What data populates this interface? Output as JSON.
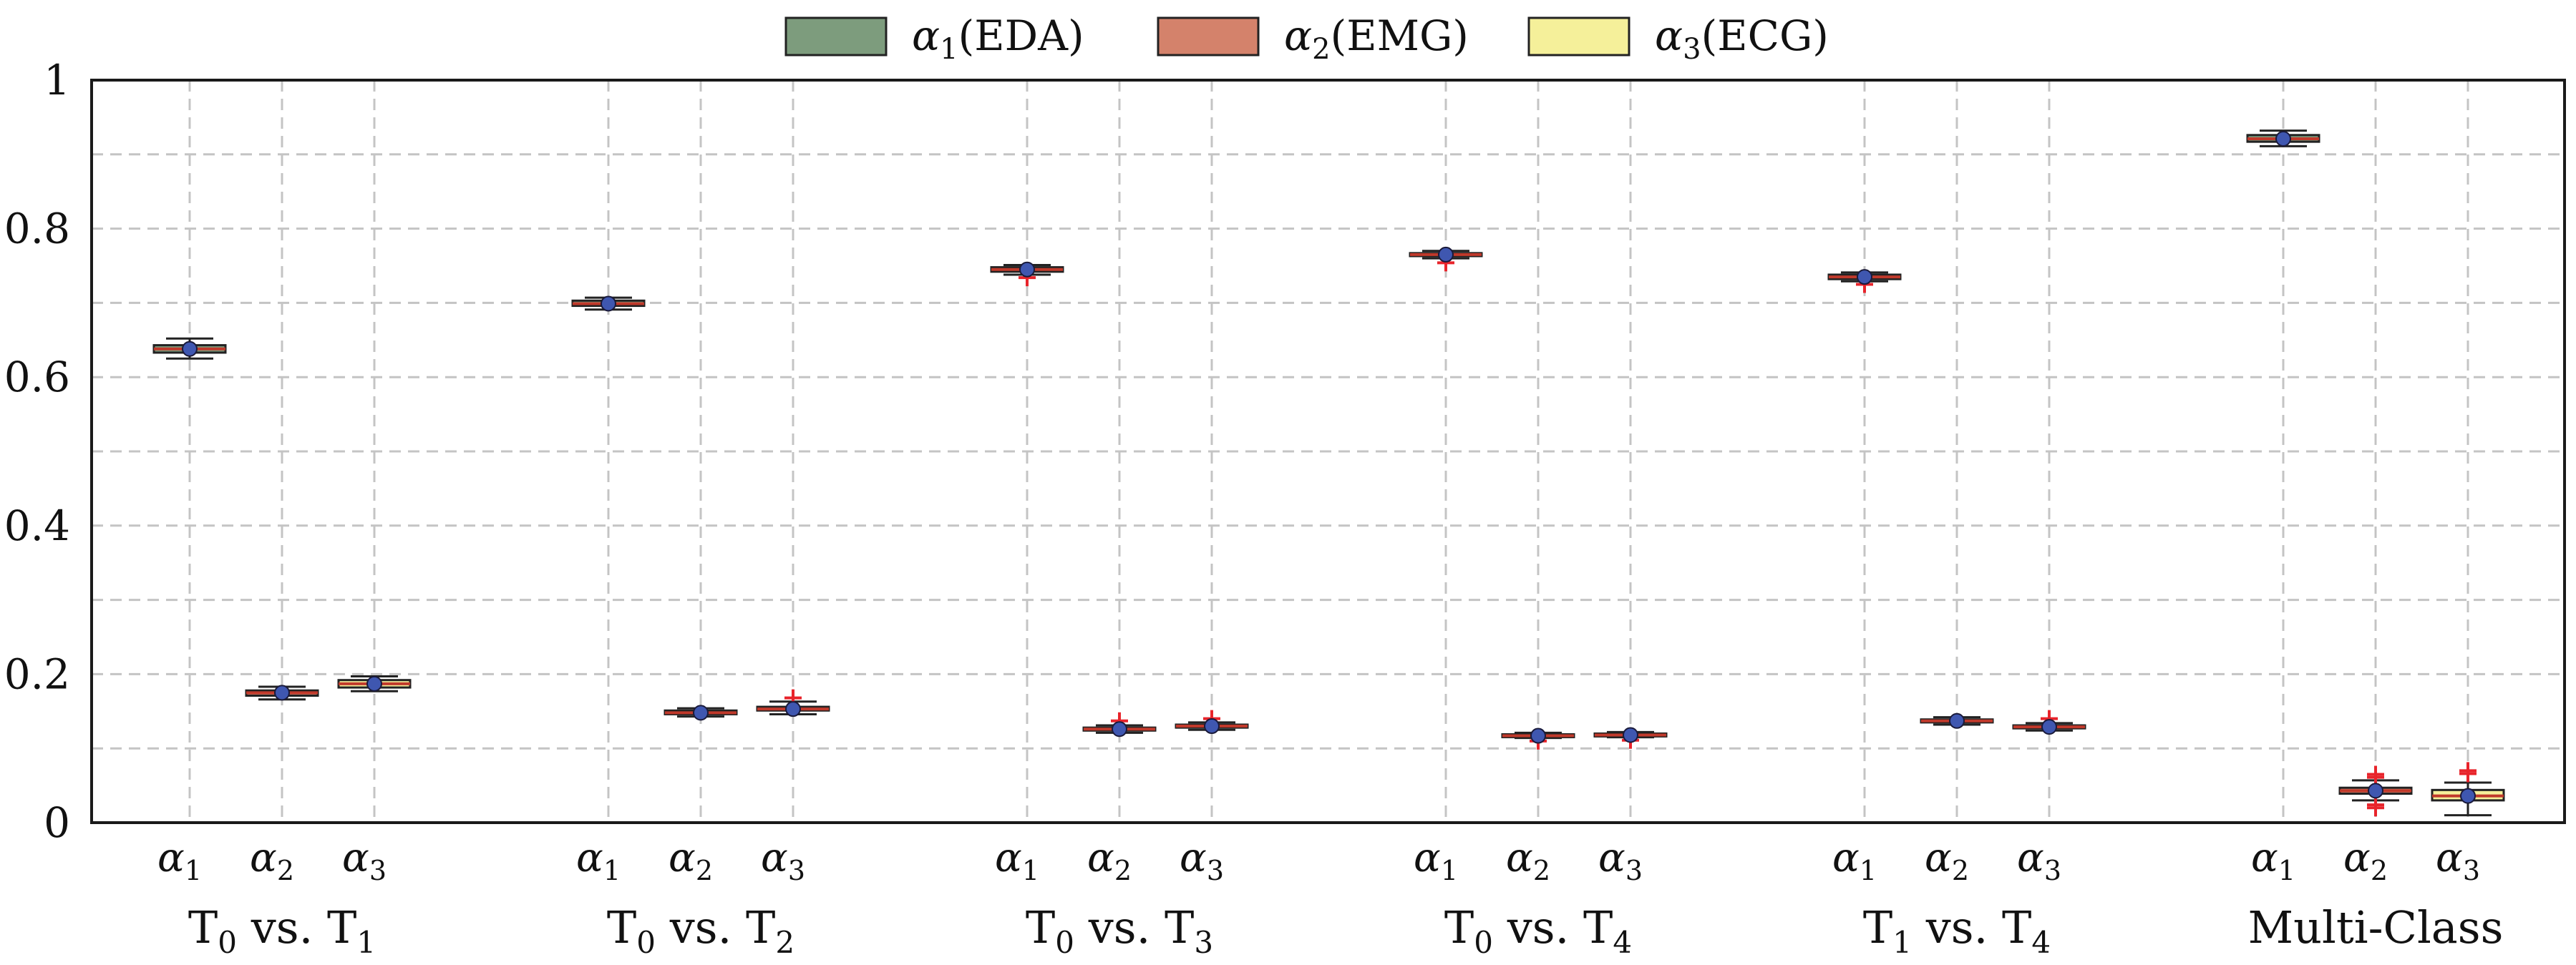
{
  "chart_data": {
    "type": "box",
    "title": "",
    "xlabel": "",
    "ylabel": "",
    "ylim": [
      0,
      1
    ],
    "yticks": [
      {
        "value": 0,
        "label": "0"
      },
      {
        "value": 0.2,
        "label": "0.2"
      },
      {
        "value": 0.4,
        "label": "0.4"
      },
      {
        "value": 0.6,
        "label": "0.6"
      },
      {
        "value": 0.8,
        "label": "0.8"
      },
      {
        "value": 1,
        "label": "1"
      }
    ],
    "grid": true,
    "legend_position": "top-center",
    "legend": [
      {
        "key": "a1",
        "symbol": "α",
        "sub": "1",
        "label": "(EDA)",
        "color": "#7d9c7d"
      },
      {
        "key": "a2",
        "symbol": "α",
        "sub": "2",
        "label": "(EMG)",
        "color": "#d4826b"
      },
      {
        "key": "a3",
        "symbol": "α",
        "sub": "3",
        "label": "(ECG)",
        "color": "#f5f09a"
      }
    ],
    "tick_symbol": "α",
    "groups": [
      {
        "label_parts": [
          {
            "t": "T"
          },
          {
            "t": "0",
            "sub": true
          },
          {
            "t": " vs. T"
          },
          {
            "t": "1",
            "sub": true
          }
        ],
        "boxes": [
          {
            "series": "a1",
            "tick_sub": "1",
            "median": 0.638,
            "q1": 0.633,
            "q3": 0.643,
            "whisker_low": 0.625,
            "whisker_high": 0.652,
            "mean": 0.638,
            "outliers": []
          },
          {
            "series": "a2",
            "tick_sub": "2",
            "median": 0.175,
            "q1": 0.171,
            "q3": 0.178,
            "whisker_low": 0.166,
            "whisker_high": 0.183,
            "mean": 0.175,
            "outliers": []
          },
          {
            "series": "a3",
            "tick_sub": "3",
            "median": 0.187,
            "q1": 0.182,
            "q3": 0.192,
            "whisker_low": 0.177,
            "whisker_high": 0.197,
            "mean": 0.187,
            "outliers": []
          }
        ]
      },
      {
        "label_parts": [
          {
            "t": "T"
          },
          {
            "t": "0",
            "sub": true
          },
          {
            "t": " vs. T"
          },
          {
            "t": "2",
            "sub": true
          }
        ],
        "boxes": [
          {
            "series": "a1",
            "tick_sub": "1",
            "median": 0.699,
            "q1": 0.696,
            "q3": 0.703,
            "whisker_low": 0.691,
            "whisker_high": 0.707,
            "mean": 0.699,
            "outliers": []
          },
          {
            "series": "a2",
            "tick_sub": "2",
            "median": 0.148,
            "q1": 0.146,
            "q3": 0.151,
            "whisker_low": 0.143,
            "whisker_high": 0.154,
            "mean": 0.148,
            "outliers": []
          },
          {
            "series": "a3",
            "tick_sub": "3",
            "median": 0.153,
            "q1": 0.151,
            "q3": 0.156,
            "whisker_low": 0.146,
            "whisker_high": 0.163,
            "mean": 0.153,
            "outliers": [
              0.168
            ]
          }
        ]
      },
      {
        "label_parts": [
          {
            "t": "T"
          },
          {
            "t": "0",
            "sub": true
          },
          {
            "t": " vs. T"
          },
          {
            "t": "3",
            "sub": true
          }
        ],
        "boxes": [
          {
            "series": "a1",
            "tick_sub": "1",
            "median": 0.745,
            "q1": 0.742,
            "q3": 0.748,
            "whisker_low": 0.738,
            "whisker_high": 0.751,
            "mean": 0.745,
            "outliers": [
              0.734
            ]
          },
          {
            "series": "a2",
            "tick_sub": "2",
            "median": 0.126,
            "q1": 0.124,
            "q3": 0.128,
            "whisker_low": 0.121,
            "whisker_high": 0.131,
            "mean": 0.126,
            "outliers": [
              0.137
            ]
          },
          {
            "series": "a3",
            "tick_sub": "3",
            "median": 0.13,
            "q1": 0.128,
            "q3": 0.132,
            "whisker_low": 0.125,
            "whisker_high": 0.135,
            "mean": 0.13,
            "outliers": [
              0.14
            ]
          }
        ]
      },
      {
        "label_parts": [
          {
            "t": "T"
          },
          {
            "t": "0",
            "sub": true
          },
          {
            "t": " vs. T"
          },
          {
            "t": "4",
            "sub": true
          }
        ],
        "boxes": [
          {
            "series": "a1",
            "tick_sub": "1",
            "median": 0.765,
            "q1": 0.763,
            "q3": 0.767,
            "whisker_low": 0.76,
            "whisker_high": 0.77,
            "mean": 0.765,
            "outliers": [
              0.754
            ]
          },
          {
            "series": "a2",
            "tick_sub": "2",
            "median": 0.117,
            "q1": 0.116,
            "q3": 0.119,
            "whisker_low": 0.114,
            "whisker_high": 0.121,
            "mean": 0.117,
            "outliers": [
              0.11
            ]
          },
          {
            "series": "a3",
            "tick_sub": "3",
            "median": 0.118,
            "q1": 0.117,
            "q3": 0.12,
            "whisker_low": 0.115,
            "whisker_high": 0.122,
            "mean": 0.118,
            "outliers": [
              0.111
            ]
          }
        ]
      },
      {
        "label_parts": [
          {
            "t": "T"
          },
          {
            "t": "1",
            "sub": true
          },
          {
            "t": " vs. T"
          },
          {
            "t": "4",
            "sub": true
          }
        ],
        "boxes": [
          {
            "series": "a1",
            "tick_sub": "1",
            "median": 0.735,
            "q1": 0.732,
            "q3": 0.738,
            "whisker_low": 0.729,
            "whisker_high": 0.741,
            "mean": 0.735,
            "outliers": [
              0.725
            ]
          },
          {
            "series": "a2",
            "tick_sub": "2",
            "median": 0.137,
            "q1": 0.135,
            "q3": 0.139,
            "whisker_low": 0.132,
            "whisker_high": 0.142,
            "mean": 0.137,
            "outliers": []
          },
          {
            "series": "a3",
            "tick_sub": "3",
            "median": 0.129,
            "q1": 0.127,
            "q3": 0.131,
            "whisker_low": 0.124,
            "whisker_high": 0.134,
            "mean": 0.129,
            "outliers": [
              0.14
            ]
          }
        ]
      },
      {
        "label_parts": [
          {
            "t": "Multi-Class"
          }
        ],
        "boxes": [
          {
            "series": "a1",
            "tick_sub": "1",
            "median": 0.921,
            "q1": 0.917,
            "q3": 0.926,
            "whisker_low": 0.911,
            "whisker_high": 0.932,
            "mean": 0.921,
            "outliers": []
          },
          {
            "series": "a2",
            "tick_sub": "2",
            "median": 0.043,
            "q1": 0.039,
            "q3": 0.047,
            "whisker_low": 0.03,
            "whisker_high": 0.057,
            "mean": 0.043,
            "outliers": [
              0.065,
              0.061,
              0.024,
              0.02
            ]
          },
          {
            "series": "a3",
            "tick_sub": "3",
            "median": 0.036,
            "q1": 0.03,
            "q3": 0.044,
            "whisker_low": 0.01,
            "whisker_high": 0.054,
            "mean": 0.036,
            "outliers": [
              0.07,
              0.066
            ]
          }
        ]
      }
    ]
  }
}
